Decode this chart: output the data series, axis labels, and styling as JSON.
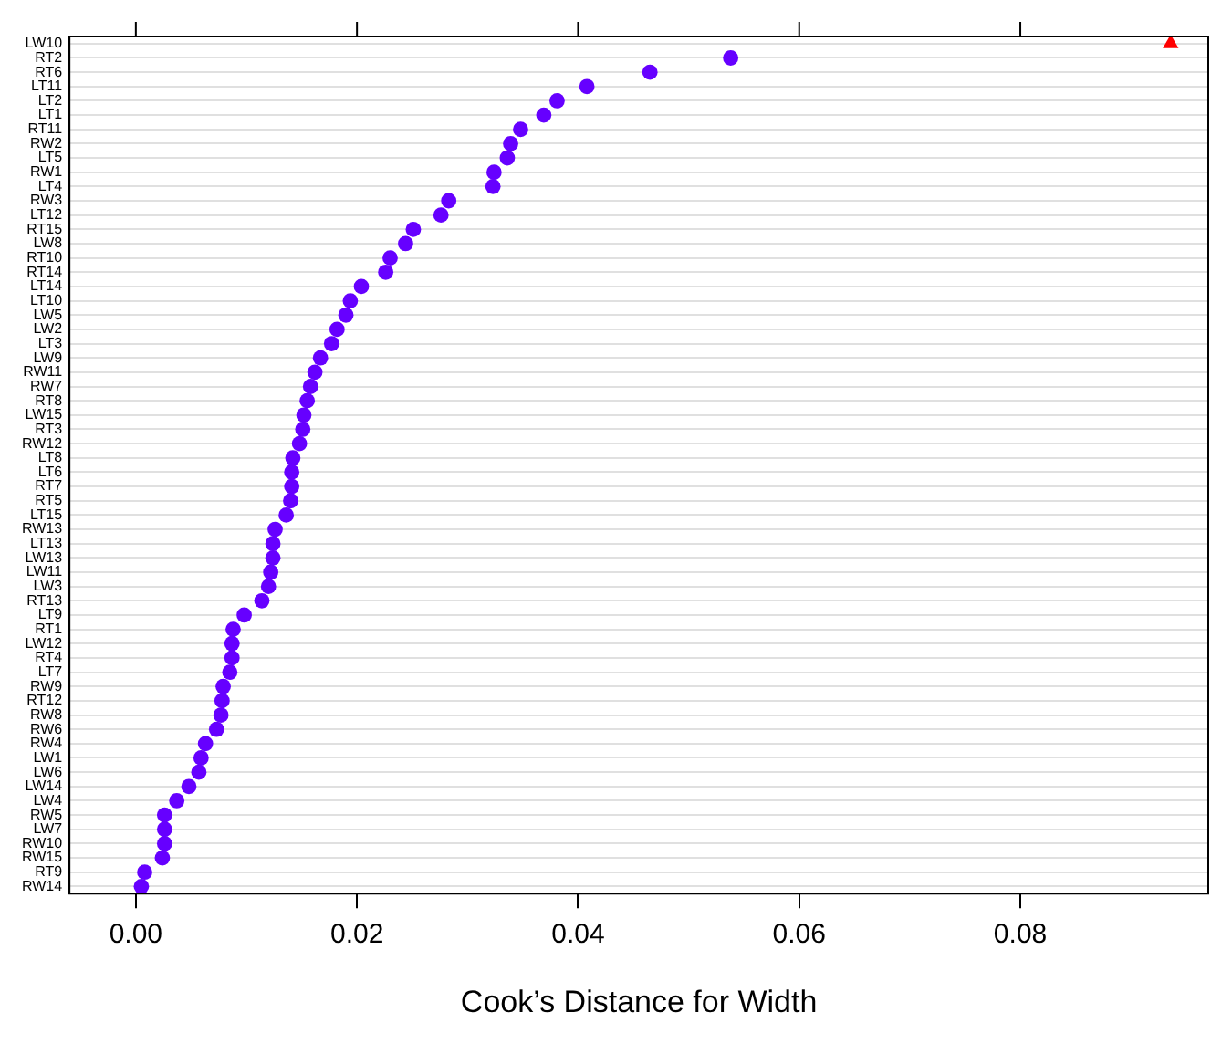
{
  "chart_data": {
    "type": "scatter",
    "orientation": "horizontal",
    "xlabel": "Cook’s Distance for Width",
    "categories": [
      "LW10",
      "RT2",
      "RT6",
      "LT11",
      "LT2",
      "LT1",
      "RT11",
      "RW2",
      "LT5",
      "RW1",
      "LT4",
      "RW3",
      "LT12",
      "RT15",
      "LW8",
      "RT10",
      "RT14",
      "LT14",
      "LT10",
      "LW5",
      "LW2",
      "LT3",
      "LW9",
      "RW11",
      "RW7",
      "RT8",
      "LW15",
      "RT3",
      "RW12",
      "LT8",
      "LT6",
      "RT7",
      "RT5",
      "LT15",
      "RW13",
      "LT13",
      "LW13",
      "LW11",
      "LW3",
      "RT13",
      "LT9",
      "RT1",
      "LW12",
      "RT4",
      "LT7",
      "RW9",
      "RT12",
      "RW8",
      "RW6",
      "RW4",
      "LW1",
      "LW6",
      "LW14",
      "LW4",
      "RW5",
      "LW7",
      "RW10",
      "RW15",
      "RT9",
      "RW14"
    ],
    "series": [
      {
        "color": "#6600ff",
        "marker": "circle",
        "values": [
          null,
          0.0538,
          0.0465,
          0.0408,
          0.0381,
          0.0369,
          0.0348,
          0.0339,
          0.0336,
          0.0324,
          0.0323,
          0.0283,
          0.0276,
          0.0251,
          0.0244,
          0.023,
          0.0226,
          0.0204,
          0.0194,
          0.019,
          0.0182,
          0.0177,
          0.0167,
          0.0162,
          0.0158,
          0.0155,
          0.0152,
          0.0151,
          0.0148,
          0.0142,
          0.0141,
          0.0141,
          0.014,
          0.0136,
          0.0126,
          0.0124,
          0.0124,
          0.0122,
          0.012,
          0.0114,
          0.0098,
          0.0088,
          0.0087,
          0.0087,
          0.0085,
          0.0079,
          0.0078,
          0.0077,
          0.0073,
          0.0063,
          0.0059,
          0.0057,
          0.0048,
          0.0037,
          0.0026,
          0.0026,
          0.0026,
          0.0024,
          0.0008,
          0.0005
        ]
      },
      {
        "color": "#ff0000",
        "marker": "triangle",
        "values": [
          0.0936,
          null,
          null,
          null,
          null,
          null,
          null,
          null,
          null,
          null,
          null,
          null,
          null,
          null,
          null,
          null,
          null,
          null,
          null,
          null,
          null,
          null,
          null,
          null,
          null,
          null,
          null,
          null,
          null,
          null,
          null,
          null,
          null,
          null,
          null,
          null,
          null,
          null,
          null,
          null,
          null,
          null,
          null,
          null,
          null,
          null,
          null,
          null,
          null,
          null,
          null,
          null,
          null,
          null,
          null,
          null,
          null,
          null,
          null,
          null
        ]
      }
    ],
    "xlim": [
      -0.006,
      0.097
    ],
    "xticks": [
      {
        "value": 0,
        "label": "0.00"
      },
      {
        "value": 0.02,
        "label": "0.02"
      },
      {
        "value": 0.04,
        "label": "0.04"
      },
      {
        "value": 0.06,
        "label": "0.06"
      },
      {
        "value": 0.08,
        "label": "0.08"
      }
    ],
    "grid": "y",
    "legend": false
  }
}
